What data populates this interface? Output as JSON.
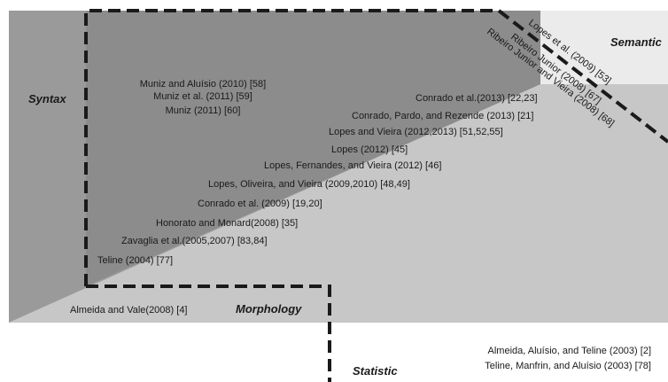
{
  "regions": {
    "syntax": "Syntax",
    "semantic": "Semantic",
    "morphology": "Morphology",
    "statistic": "Statistic"
  },
  "references": {
    "syntax": [
      "Muniz and Aluísio (2010) [58]",
      "Muniz et al. (2011) [59]",
      "Muniz (2011) [60]",
      "Conrado et al.(2013) [22,23]",
      "Conrado, Pardo, and Rezende (2013) [21]",
      "Lopes and Vieira (2012,2013) [51,52,55]",
      "Lopes (2012) [45]",
      "Lopes, Fernandes, and Vieira (2012) [46]",
      "Lopes, Oliveira, and Vieira (2009,2010) [48,49]",
      "Conrado et al. (2009) [19,20]",
      "Honorato and Monard(2008) [35]",
      "Zavaglia et al.(2005,2007) [83,84]",
      "Teline (2004) [77]"
    ],
    "semantic": [
      "Lopes et al. (2009) [53]",
      "Ribeiro Junior (2008) [67]",
      "Ribeiro Junior and Vieira (2008) [68]"
    ],
    "morphology": [
      "Almeida and Vale(2008) [4]"
    ],
    "statistic": [
      "Almeida, Aluísio, and Teline (2003) [2]",
      "Teline, Manfrin, and Aluísio (2003) [78]"
    ]
  },
  "colors": {
    "syntax_fill": "#9a9a9a",
    "syntax_overlap": "#8c8c8c",
    "morphology_fill": "#c7c7c7",
    "semantic_fill": "#ebebeb",
    "statistic_fill": "#ffffff",
    "dashed_line": "#1a1a1a"
  }
}
